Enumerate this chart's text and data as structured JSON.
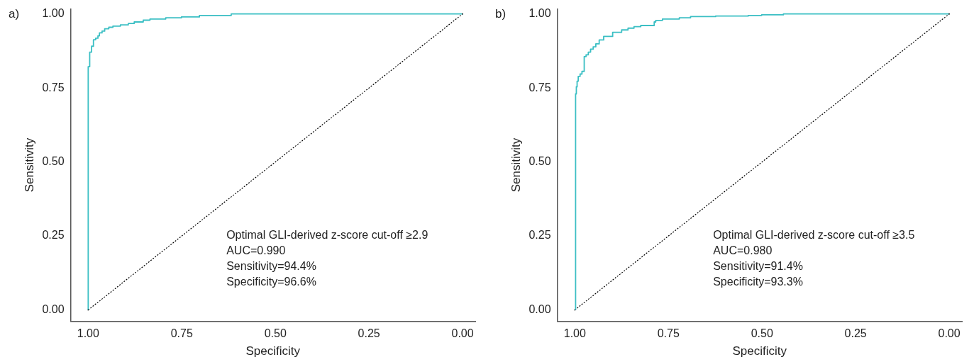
{
  "chart_data": [
    {
      "type": "step",
      "title": "a)",
      "xlabel": "Specificity",
      "ylabel": "Sensitivity",
      "xlim": [
        1.047,
        -0.034
      ],
      "ylim": [
        -0.038,
        1.017
      ],
      "xticks": [
        {
          "value": 1,
          "label": "1.00"
        },
        {
          "value": 0.75,
          "label": "0.75"
        },
        {
          "value": 0.5,
          "label": "0.50"
        },
        {
          "value": 0.25,
          "label": "0.25"
        },
        {
          "value": 0,
          "label": "0.00"
        }
      ],
      "yticks": [
        {
          "value": 0,
          "label": "0.00"
        },
        {
          "value": 0.25,
          "label": "0.25"
        },
        {
          "value": 0.5,
          "label": "0.50"
        },
        {
          "value": 0.75,
          "label": "0.75"
        },
        {
          "value": 1,
          "label": "1.00"
        }
      ],
      "grid": false,
      "legend": false,
      "marker": "none",
      "series": [
        {
          "color": "#3bbfc4",
          "line_style": "solid",
          "x": [
            1.0,
            1.0,
            0.996,
            0.991,
            0.986,
            0.98,
            0.974,
            0.97,
            0.963,
            0.956,
            0.945,
            0.934,
            0.914,
            0.893,
            0.877,
            0.853,
            0.835,
            0.793,
            0.751,
            0.703,
            0.618,
            0.527,
            0.0
          ],
          "values": [
            0.0,
            0.798,
            0.822,
            0.871,
            0.891,
            0.913,
            0.918,
            0.926,
            0.936,
            0.942,
            0.95,
            0.955,
            0.959,
            0.963,
            0.968,
            0.973,
            0.979,
            0.983,
            0.987,
            0.99,
            0.995,
            1.0,
            1.0
          ]
        },
        {
          "type": "line",
          "color": "#000000",
          "line_style": "dotted",
          "x": [
            1,
            0
          ],
          "values": [
            0,
            1
          ]
        }
      ],
      "annotations": [
        "Optimal GLI-derived z-score cut-off ≥2.9",
        "AUC=0.990",
        "Sensitivity=94.4%",
        "Specificity=96.6%"
      ]
    },
    {
      "type": "step",
      "title": "b)",
      "xlabel": "Specificity",
      "ylabel": "Sensitivity",
      "xlim": [
        1.047,
        -0.034
      ],
      "ylim": [
        -0.038,
        1.017
      ],
      "xticks": [
        {
          "value": 1,
          "label": "1.00"
        },
        {
          "value": 0.75,
          "label": "0.75"
        },
        {
          "value": 0.5,
          "label": "0.50"
        },
        {
          "value": 0.25,
          "label": "0.25"
        },
        {
          "value": 0,
          "label": "0.00"
        }
      ],
      "yticks": [
        {
          "value": 0,
          "label": "0.00"
        },
        {
          "value": 0.25,
          "label": "0.25"
        },
        {
          "value": 0.5,
          "label": "0.50"
        },
        {
          "value": 0.75,
          "label": "0.75"
        },
        {
          "value": 1,
          "label": "1.00"
        }
      ],
      "grid": false,
      "legend": false,
      "marker": "none",
      "series": [
        {
          "color": "#3bbfc4",
          "line_style": "solid",
          "x": [
            0.998,
            0.998,
            0.996,
            0.994,
            0.991,
            0.986,
            0.981,
            0.975,
            0.97,
            0.964,
            0.958,
            0.951,
            0.944,
            0.935,
            0.923,
            0.899,
            0.875,
            0.858,
            0.842,
            0.824,
            0.788,
            0.784,
            0.766,
            0.721,
            0.691,
            0.624,
            0.537,
            0.501,
            0.443,
            0.168,
            0.0
          ],
          "values": [
            0.0,
            0.715,
            0.73,
            0.754,
            0.773,
            0.789,
            0.797,
            0.806,
            0.856,
            0.862,
            0.871,
            0.881,
            0.889,
            0.899,
            0.912,
            0.924,
            0.938,
            0.946,
            0.952,
            0.957,
            0.961,
            0.973,
            0.978,
            0.983,
            0.987,
            0.991,
            0.993,
            0.995,
            0.997,
            1.0,
            1.0
          ]
        },
        {
          "type": "line",
          "color": "#000000",
          "line_style": "dotted",
          "x": [
            1,
            0
          ],
          "values": [
            0,
            1
          ]
        }
      ],
      "annotations": [
        "Optimal GLI-derived z-score cut-off ≥3.5",
        "AUC=0.980",
        "Sensitivity=91.4%",
        "Specificity=93.3%"
      ]
    }
  ]
}
